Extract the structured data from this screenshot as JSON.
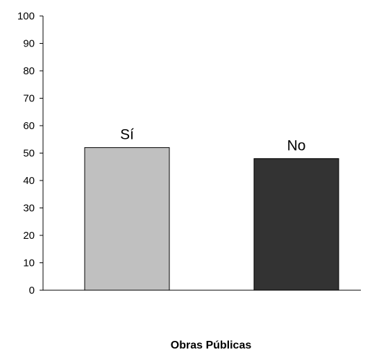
{
  "chart_data": {
    "type": "bar",
    "categories": [
      "Sí",
      "No"
    ],
    "values": [
      52,
      48
    ],
    "data_labels": [
      "Sí",
      "No"
    ],
    "colors": [
      "#c0c0c0",
      "#333333"
    ],
    "bar_edge_color": "#000000",
    "title": "",
    "xlabel": "Obras Públicas",
    "ylabel": "",
    "ylim": [
      0,
      100
    ],
    "yticks": [
      0,
      10,
      20,
      30,
      40,
      50,
      60,
      70,
      80,
      90,
      100
    ],
    "grid": false,
    "legend": "none"
  }
}
